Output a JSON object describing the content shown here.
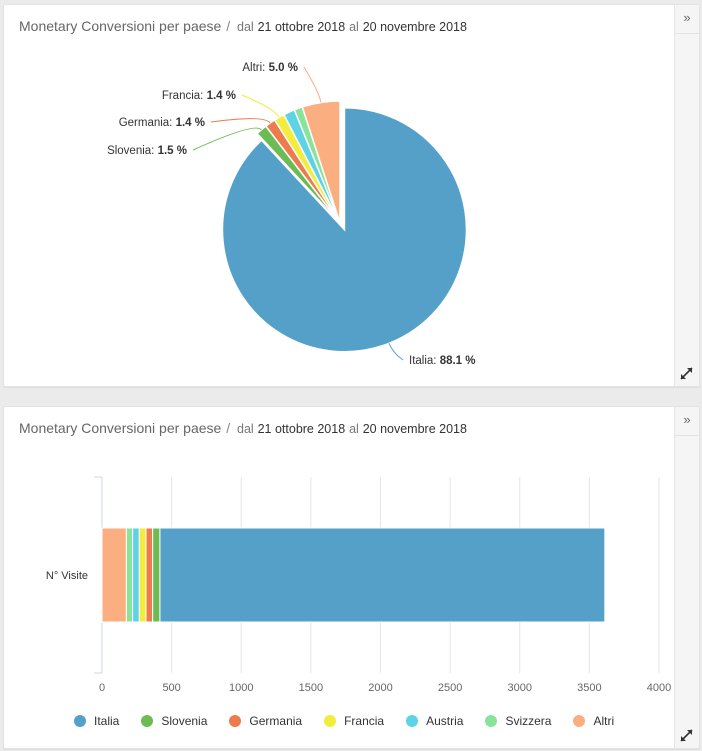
{
  "widgets": [
    {
      "title_main": "Monetary Conversioni per paese",
      "title_sep": "/",
      "title_from_word": "dal",
      "title_from_date": "21 ottobre 2018",
      "title_to_word": "al",
      "title_to_date": "20 novembre 2018",
      "collapse_icon": "»",
      "expand_icon": "expand-diagonal-arrows"
    },
    {
      "title_main": "Monetary Conversioni per paese",
      "title_sep": "/",
      "title_from_word": "dal",
      "title_from_date": "21 ottobre 2018",
      "title_to_word": "al",
      "title_to_date": "20 novembre 2018",
      "collapse_icon": "»",
      "expand_icon": "expand-diagonal-arrows"
    }
  ],
  "colors": {
    "Italia": "#55a0c8",
    "Slovenia": "#6dbb54",
    "Germania": "#ec7b4e",
    "Francia": "#f2ec3c",
    "Austria": "#5ed3e6",
    "Svizzera": "#89e39b",
    "Altri": "#fbae80"
  },
  "chart_data": [
    {
      "type": "pie",
      "categories": [
        "Italia",
        "Slovenia",
        "Germania",
        "Francia",
        "Austria",
        "Svizzera",
        "Altri"
      ],
      "values": [
        88.1,
        1.5,
        1.4,
        1.4,
        1.5,
        1.1,
        5.0
      ],
      "unit": "%",
      "labels": [
        {
          "name": "Italia",
          "value": "88.1 %"
        },
        {
          "name": "Slovenia",
          "value": "1.5 %"
        },
        {
          "name": "Germania",
          "value": "1.4 %"
        },
        {
          "name": "Francia",
          "value": "1.4 %"
        },
        {
          "name": "Altri",
          "value": "5.0 %"
        }
      ],
      "exploded_slice": "Italia"
    },
    {
      "type": "bar",
      "orientation": "horizontal",
      "stacked": true,
      "categories": [
        "N° Visite"
      ],
      "series": [
        {
          "name": "Altri",
          "values": [
            175
          ]
        },
        {
          "name": "Svizzera",
          "values": [
            45
          ]
        },
        {
          "name": "Austria",
          "values": [
            48
          ]
        },
        {
          "name": "Francia",
          "values": [
            48
          ]
        },
        {
          "name": "Germania",
          "values": [
            48
          ]
        },
        {
          "name": "Slovenia",
          "values": [
            52
          ]
        },
        {
          "name": "Italia",
          "values": [
            3195
          ]
        }
      ],
      "x_ticks": [
        0,
        500,
        1000,
        1500,
        2000,
        2500,
        3000,
        3500,
        4000
      ],
      "xlim": [
        0,
        4000
      ],
      "grid": true,
      "legend": [
        "Italia",
        "Slovenia",
        "Germania",
        "Francia",
        "Austria",
        "Svizzera",
        "Altri"
      ],
      "legend_position": "bottom"
    }
  ]
}
